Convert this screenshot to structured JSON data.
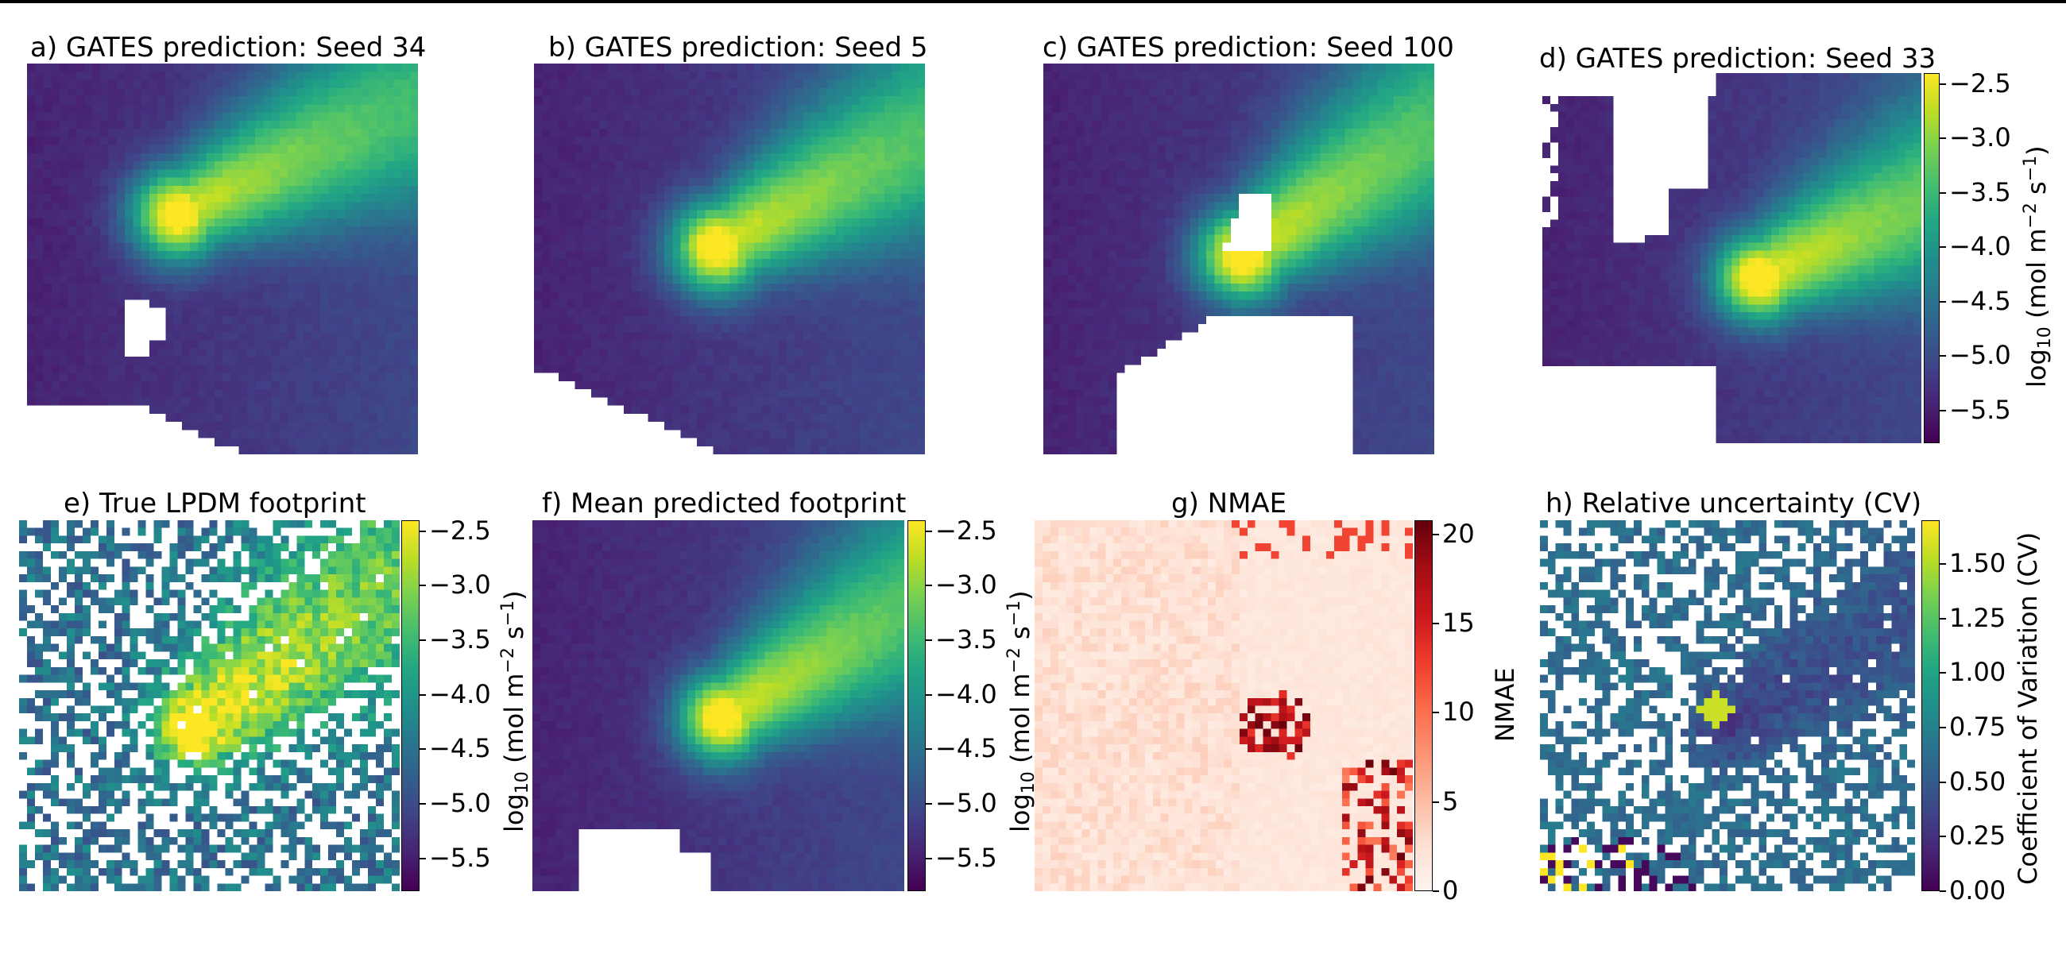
{
  "figure": {
    "panels": [
      {
        "id": "a",
        "title": "a) GATES prediction: Seed 34"
      },
      {
        "id": "b",
        "title": "b) GATES prediction: Seed 5"
      },
      {
        "id": "c",
        "title": "c) GATES prediction: Seed 100"
      },
      {
        "id": "d",
        "title": "d) GATES prediction: Seed 33"
      },
      {
        "id": "e",
        "title": "e) True LPDM footprint"
      },
      {
        "id": "f",
        "title": "f) Mean predicted footprint"
      },
      {
        "id": "g",
        "title": "g) NMAE"
      },
      {
        "id": "h",
        "title": "h) Relative uncertainty (CV)"
      }
    ],
    "colorbars": {
      "footprint": {
        "label_parts": {
          "base": "log",
          "sub": "10",
          "text1": " (mol m",
          "sup1": "−2",
          "text2": " s",
          "sup2": "−1",
          "text3": ")"
        },
        "label_text": "log10 (mol m−2 s−1)",
        "ticks": [
          "−2.5",
          "−3.0",
          "−3.5",
          "−4.0",
          "−4.5",
          "−5.0",
          "−5.5"
        ],
        "tick_values": [
          -2.5,
          -3.0,
          -3.5,
          -4.0,
          -4.5,
          -5.0,
          -5.5
        ],
        "range": [
          -5.8,
          -2.4
        ],
        "colormap": "viridis"
      },
      "nmae": {
        "label": "NMAE",
        "ticks": [
          "0",
          "5",
          "10",
          "15",
          "20"
        ],
        "tick_values": [
          0,
          5,
          10,
          15,
          20
        ],
        "range": [
          0,
          20.8
        ],
        "colormap": "Reds"
      },
      "cv": {
        "label": "Coefficient of Variation (CV)",
        "ticks": [
          "0.00",
          "0.25",
          "0.50",
          "0.75",
          "1.00",
          "1.25",
          "1.50"
        ],
        "tick_values": [
          0,
          0.25,
          0.5,
          0.75,
          1.0,
          1.25,
          1.5
        ],
        "range": [
          0,
          1.7
        ],
        "colormap": "viridis"
      }
    }
  },
  "chart_data": [
    {
      "type": "heatmap",
      "title": "a) GATES prediction: Seed 34",
      "colorbar": "footprint",
      "grid": "48x48",
      "description_values": {
        "peak": -2.5,
        "background": -5.5
      }
    },
    {
      "type": "heatmap",
      "title": "b) GATES prediction: Seed 5",
      "colorbar": "footprint",
      "grid": "48x48",
      "description_values": {
        "peak": -2.5,
        "background": -5.6
      }
    },
    {
      "type": "heatmap",
      "title": "c) GATES prediction: Seed 100",
      "colorbar": "footprint",
      "grid": "48x48",
      "description_values": {
        "peak": -2.5,
        "background": -5.4
      }
    },
    {
      "type": "heatmap",
      "title": "d) GATES prediction: Seed 33",
      "colorbar": "footprint",
      "grid": "48x48",
      "description_values": {
        "peak": -2.5,
        "background": -5.6
      }
    },
    {
      "type": "heatmap",
      "title": "e) True LPDM footprint",
      "colorbar": "footprint",
      "grid": "48x48",
      "description_values": {
        "peak": -2.5,
        "background": -4.8
      }
    },
    {
      "type": "heatmap",
      "title": "f) Mean predicted footprint",
      "colorbar": "footprint",
      "grid": "48x48",
      "description_values": {
        "peak": -2.5,
        "background": -5.6
      }
    },
    {
      "type": "heatmap",
      "title": "g) NMAE",
      "colorbar": "nmae",
      "grid": "48x48",
      "description_values": {
        "max": 20,
        "background": 1
      }
    },
    {
      "type": "heatmap",
      "title": "h) Relative uncertainty (CV)",
      "colorbar": "cv",
      "grid": "48x48",
      "description_values": {
        "max": 1.7,
        "background": 0.5
      }
    }
  ]
}
